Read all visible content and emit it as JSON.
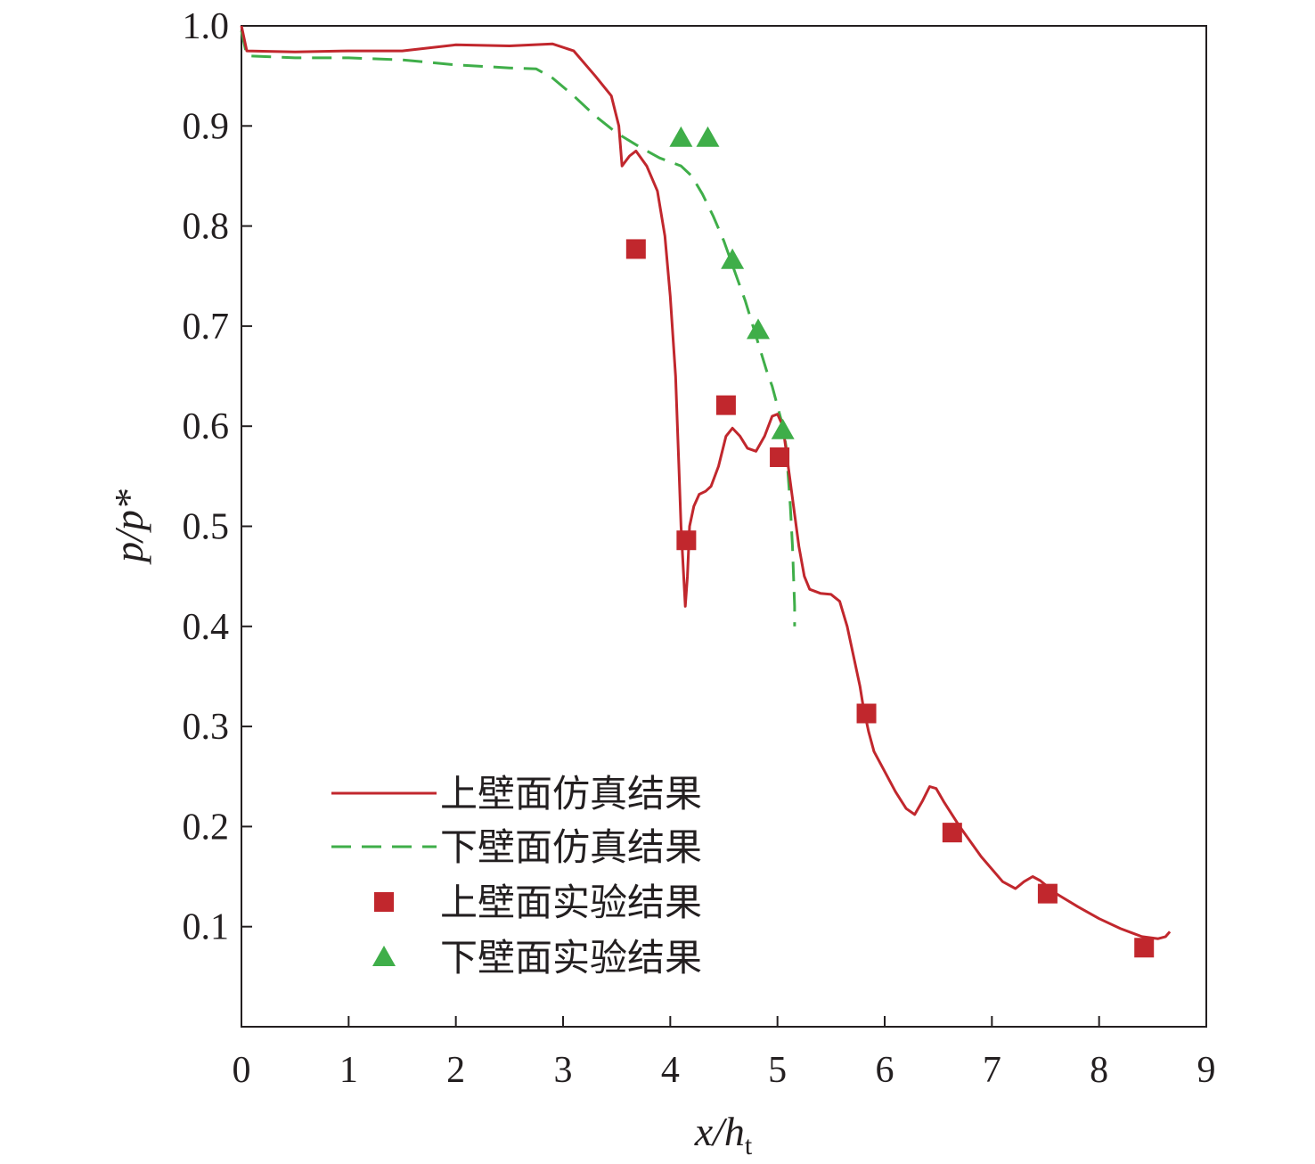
{
  "chart_data": {
    "type": "line",
    "title": "",
    "xlabel": {
      "main": "x/h",
      "sub": "t"
    },
    "ylabel": {
      "main": "p/p*"
    },
    "xlim": [
      0,
      9
    ],
    "ylim": [
      0,
      1.0
    ],
    "xticks": [
      0,
      1,
      2,
      3,
      4,
      5,
      6,
      7,
      8,
      9
    ],
    "yticks": [
      0.1,
      0.2,
      0.3,
      0.4,
      0.5,
      0.6,
      0.7,
      0.8,
      0.9,
      1.0
    ],
    "xtick_labels": [
      "0",
      "1",
      "2",
      "3",
      "4",
      "5",
      "6",
      "7",
      "8",
      "9"
    ],
    "ytick_labels": [
      "0.1",
      "0.2",
      "0.3",
      "0.4",
      "0.5",
      "0.6",
      "0.7",
      "0.8",
      "0.9",
      "1.0"
    ],
    "grid": false,
    "legend_position": "bottom-left",
    "series": [
      {
        "name": "上壁面仿真结果",
        "kind": "line",
        "style": "solid",
        "color": "#c1272d",
        "points": [
          [
            0.0,
            1.0
          ],
          [
            0.05,
            0.975
          ],
          [
            0.5,
            0.974
          ],
          [
            1.0,
            0.975
          ],
          [
            1.5,
            0.975
          ],
          [
            2.0,
            0.981
          ],
          [
            2.5,
            0.98
          ],
          [
            2.9,
            0.982
          ],
          [
            3.1,
            0.975
          ],
          [
            3.3,
            0.95
          ],
          [
            3.45,
            0.93
          ],
          [
            3.52,
            0.9
          ],
          [
            3.55,
            0.86
          ],
          [
            3.62,
            0.87
          ],
          [
            3.68,
            0.875
          ],
          [
            3.78,
            0.86
          ],
          [
            3.88,
            0.835
          ],
          [
            3.95,
            0.79
          ],
          [
            4.0,
            0.73
          ],
          [
            4.05,
            0.65
          ],
          [
            4.08,
            0.56
          ],
          [
            4.1,
            0.5
          ],
          [
            4.12,
            0.46
          ],
          [
            4.14,
            0.42
          ],
          [
            4.16,
            0.45
          ],
          [
            4.18,
            0.5
          ],
          [
            4.22,
            0.52
          ],
          [
            4.27,
            0.532
          ],
          [
            4.33,
            0.535
          ],
          [
            4.38,
            0.54
          ],
          [
            4.45,
            0.56
          ],
          [
            4.52,
            0.59
          ],
          [
            4.58,
            0.598
          ],
          [
            4.65,
            0.59
          ],
          [
            4.72,
            0.578
          ],
          [
            4.8,
            0.575
          ],
          [
            4.88,
            0.59
          ],
          [
            4.95,
            0.61
          ],
          [
            5.0,
            0.612
          ],
          [
            5.05,
            0.6
          ],
          [
            5.1,
            0.56
          ],
          [
            5.15,
            0.52
          ],
          [
            5.2,
            0.48
          ],
          [
            5.25,
            0.45
          ],
          [
            5.3,
            0.437
          ],
          [
            5.4,
            0.433
          ],
          [
            5.5,
            0.432
          ],
          [
            5.58,
            0.425
          ],
          [
            5.65,
            0.4
          ],
          [
            5.72,
            0.365
          ],
          [
            5.77,
            0.34
          ],
          [
            5.8,
            0.32
          ],
          [
            5.85,
            0.295
          ],
          [
            5.9,
            0.275
          ],
          [
            6.0,
            0.255
          ],
          [
            6.1,
            0.235
          ],
          [
            6.2,
            0.218
          ],
          [
            6.28,
            0.212
          ],
          [
            6.35,
            0.225
          ],
          [
            6.42,
            0.24
          ],
          [
            6.48,
            0.238
          ],
          [
            6.55,
            0.225
          ],
          [
            6.7,
            0.2
          ],
          [
            6.9,
            0.17
          ],
          [
            7.1,
            0.145
          ],
          [
            7.22,
            0.138
          ],
          [
            7.3,
            0.145
          ],
          [
            7.38,
            0.15
          ],
          [
            7.45,
            0.146
          ],
          [
            7.6,
            0.133
          ],
          [
            7.8,
            0.12
          ],
          [
            8.0,
            0.108
          ],
          [
            8.2,
            0.098
          ],
          [
            8.4,
            0.09
          ],
          [
            8.55,
            0.088
          ],
          [
            8.62,
            0.09
          ],
          [
            8.66,
            0.095
          ]
        ]
      },
      {
        "name": "下壁面仿真结果",
        "kind": "line",
        "style": "dashed",
        "color": "#3fae49",
        "points": [
          [
            0.0,
            0.995
          ],
          [
            0.05,
            0.97
          ],
          [
            0.5,
            0.968
          ],
          [
            1.0,
            0.968
          ],
          [
            1.5,
            0.966
          ],
          [
            2.0,
            0.961
          ],
          [
            2.5,
            0.958
          ],
          [
            2.75,
            0.957
          ],
          [
            2.9,
            0.948
          ],
          [
            3.1,
            0.93
          ],
          [
            3.3,
            0.91
          ],
          [
            3.5,
            0.893
          ],
          [
            3.7,
            0.88
          ],
          [
            3.9,
            0.868
          ],
          [
            4.1,
            0.86
          ],
          [
            4.2,
            0.85
          ],
          [
            4.3,
            0.832
          ],
          [
            4.4,
            0.81
          ],
          [
            4.5,
            0.785
          ],
          [
            4.6,
            0.755
          ],
          [
            4.7,
            0.725
          ],
          [
            4.8,
            0.69
          ],
          [
            4.9,
            0.655
          ],
          [
            4.95,
            0.64
          ],
          [
            5.0,
            0.62
          ],
          [
            5.05,
            0.6
          ],
          [
            5.08,
            0.58
          ],
          [
            5.1,
            0.55
          ],
          [
            5.12,
            0.52
          ],
          [
            5.14,
            0.48
          ],
          [
            5.15,
            0.45
          ],
          [
            5.16,
            0.42
          ],
          [
            5.16,
            0.4
          ]
        ]
      },
      {
        "name": "上壁面实验结果",
        "kind": "scatter",
        "marker": "square",
        "color": "#c1272d",
        "points": [
          [
            3.68,
            0.777
          ],
          [
            4.15,
            0.486
          ],
          [
            4.52,
            0.621
          ],
          [
            5.02,
            0.569
          ],
          [
            5.83,
            0.313
          ],
          [
            6.63,
            0.194
          ],
          [
            7.52,
            0.133
          ],
          [
            8.42,
            0.079
          ]
        ]
      },
      {
        "name": "下壁面实验结果",
        "kind": "scatter",
        "marker": "triangle",
        "color": "#3fae49",
        "points": [
          [
            4.1,
            0.888
          ],
          [
            4.35,
            0.888
          ],
          [
            4.58,
            0.766
          ],
          [
            4.82,
            0.696
          ],
          [
            5.05,
            0.596
          ]
        ]
      }
    ]
  }
}
